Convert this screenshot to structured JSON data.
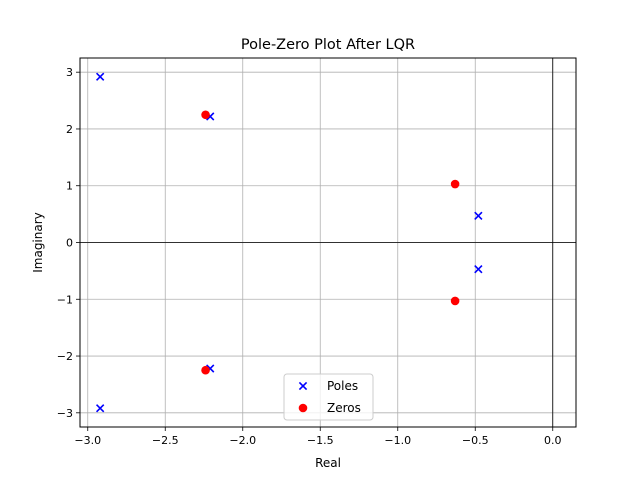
{
  "chart_data": {
    "type": "scatter",
    "title": "Pole-Zero Plot After LQR",
    "xlabel": "Real",
    "ylabel": "Imaginary",
    "xlim": [
      -3.05,
      0.15
    ],
    "ylim": [
      -3.25,
      3.25
    ],
    "xticks": [
      -3.0,
      -2.5,
      -2.0,
      -1.5,
      -1.0,
      -0.5,
      0.0
    ],
    "xtick_labels": [
      "−3.0",
      "−2.5",
      "−2.0",
      "−1.5",
      "−1.0",
      "−0.5",
      "0.0"
    ],
    "yticks": [
      -3,
      -2,
      -1,
      0,
      1,
      2,
      3
    ],
    "ytick_labels": [
      "−3",
      "−2",
      "−1",
      "0",
      "1",
      "2",
      "3"
    ],
    "grid": true,
    "reference_lines": {
      "x": 0,
      "y": 0
    },
    "legend_position": "lower-center",
    "series": [
      {
        "name": "Poles",
        "marker": "x",
        "color": "#0000ff",
        "points": [
          [
            -2.92,
            2.92
          ],
          [
            -2.92,
            -2.92
          ],
          [
            -2.21,
            2.22
          ],
          [
            -2.21,
            -2.22
          ],
          [
            -0.48,
            0.47
          ],
          [
            -0.48,
            -0.47
          ]
        ]
      },
      {
        "name": "Zeros",
        "marker": "o",
        "color": "#ff0000",
        "points": [
          [
            -2.24,
            2.25
          ],
          [
            -2.24,
            -2.25
          ],
          [
            -0.63,
            1.03
          ],
          [
            -0.63,
            -1.03
          ]
        ]
      }
    ]
  }
}
